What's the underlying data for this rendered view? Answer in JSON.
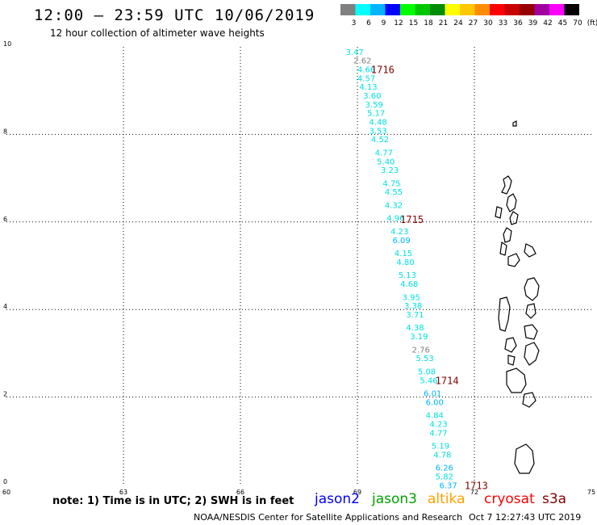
{
  "header": {
    "title": "12:00 — 23:59 UTC 10/06/2019",
    "subtitle": "12 hour collection of altimeter wave heights"
  },
  "color_scale": {
    "labels": [
      "3",
      "6",
      "9",
      "12",
      "15",
      "18",
      "21",
      "24",
      "27",
      "30",
      "33",
      "36",
      "39",
      "42",
      "45",
      "70",
      "(ft)"
    ],
    "colors": [
      "#808080",
      "#00ffff",
      "#00b4ff",
      "#0000ff",
      "#00ff00",
      "#00c800",
      "#008c00",
      "#ffff00",
      "#ffc800",
      "#ff8c00",
      "#ff0000",
      "#c80000",
      "#960000",
      "#a000a0",
      "#ff00ff",
      "#000000"
    ]
  },
  "axes": {
    "x_ticks": [
      "60",
      "63",
      "66",
      "69",
      "72",
      "75"
    ],
    "y_ticks": [
      "0",
      "2",
      "4",
      "6",
      "8",
      "10"
    ]
  },
  "chart_data": {
    "type": "scatter",
    "x_range": [
      60,
      75
    ],
    "y_range": [
      0,
      10
    ],
    "grid": true,
    "passes": [
      "1716",
      "1715",
      "1714",
      "1713"
    ],
    "swh_labels": [
      {
        "v": "3.47",
        "c": "#00e0e0",
        "x": 68.7,
        "y": 9.82
      },
      {
        "v": "2.62",
        "c": "#808080",
        "x": 68.9,
        "y": 9.62
      },
      {
        "v": "4.66",
        "c": "#00e0e0",
        "x": 69.0,
        "y": 9.42
      },
      {
        "v": "4.57",
        "c": "#00e0e0",
        "x": 69.0,
        "y": 9.22
      },
      {
        "v": "4.13",
        "c": "#00e0e0",
        "x": 69.05,
        "y": 9.02
      },
      {
        "v": "3.60",
        "c": "#00e0e0",
        "x": 69.15,
        "y": 8.82
      },
      {
        "v": "3.59",
        "c": "#00e0e0",
        "x": 69.2,
        "y": 8.62
      },
      {
        "v": "5.17",
        "c": "#00e0e0",
        "x": 69.25,
        "y": 8.42
      },
      {
        "v": "4.48",
        "c": "#00e0e0",
        "x": 69.3,
        "y": 8.22
      },
      {
        "v": "3.53",
        "c": "#00e0e0",
        "x": 69.3,
        "y": 8.02
      },
      {
        "v": "4.52",
        "c": "#00e0e0",
        "x": 69.35,
        "y": 7.82
      },
      {
        "v": "4.77",
        "c": "#00e0e0",
        "x": 69.45,
        "y": 7.52
      },
      {
        "v": "5.40",
        "c": "#00e0e0",
        "x": 69.5,
        "y": 7.32
      },
      {
        "v": "3.23",
        "c": "#00e0e0",
        "x": 69.6,
        "y": 7.12
      },
      {
        "v": "4.75",
        "c": "#00e0e0",
        "x": 69.65,
        "y": 6.82
      },
      {
        "v": "4.55",
        "c": "#00e0e0",
        "x": 69.7,
        "y": 6.62
      },
      {
        "v": "4.32",
        "c": "#00e0e0",
        "x": 69.7,
        "y": 6.32
      },
      {
        "v": "4.96",
        "c": "#00e0e0",
        "x": 69.75,
        "y": 6.02
      },
      {
        "v": "4.23",
        "c": "#00e0e0",
        "x": 69.85,
        "y": 5.72
      },
      {
        "v": "6.09",
        "c": "#00b4ff",
        "x": 69.9,
        "y": 5.52
      },
      {
        "v": "4.15",
        "c": "#00e0e0",
        "x": 69.95,
        "y": 5.22
      },
      {
        "v": "4.80",
        "c": "#00e0e0",
        "x": 70.0,
        "y": 5.02
      },
      {
        "v": "5.13",
        "c": "#00e0e0",
        "x": 70.05,
        "y": 4.72
      },
      {
        "v": "4.68",
        "c": "#00e0e0",
        "x": 70.1,
        "y": 4.52
      },
      {
        "v": "3.95",
        "c": "#00e0e0",
        "x": 70.15,
        "y": 4.22
      },
      {
        "v": "3.38",
        "c": "#00e0e0",
        "x": 70.2,
        "y": 4.02
      },
      {
        "v": "3.71",
        "c": "#00e0e0",
        "x": 70.25,
        "y": 3.82
      },
      {
        "v": "4.38",
        "c": "#00e0e0",
        "x": 70.25,
        "y": 3.52
      },
      {
        "v": "3.19",
        "c": "#00e0e0",
        "x": 70.35,
        "y": 3.32
      },
      {
        "v": "2.76",
        "c": "#808080",
        "x": 70.4,
        "y": 3.02
      },
      {
        "v": "5.53",
        "c": "#00e0e0",
        "x": 70.5,
        "y": 2.82
      },
      {
        "v": "5.08",
        "c": "#00e0e0",
        "x": 70.55,
        "y": 2.52
      },
      {
        "v": "5.46",
        "c": "#00e0e0",
        "x": 70.6,
        "y": 2.32
      },
      {
        "v": "6.01",
        "c": "#00b4ff",
        "x": 70.7,
        "y": 2.02
      },
      {
        "v": "6.00",
        "c": "#00b4ff",
        "x": 70.75,
        "y": 1.82
      },
      {
        "v": "4.84",
        "c": "#00e0e0",
        "x": 70.75,
        "y": 1.52
      },
      {
        "v": "4.23",
        "c": "#00e0e0",
        "x": 70.85,
        "y": 1.32
      },
      {
        "v": "4.77",
        "c": "#00e0e0",
        "x": 70.85,
        "y": 1.12
      },
      {
        "v": "5.19",
        "c": "#00e0e0",
        "x": 70.9,
        "y": 0.82
      },
      {
        "v": "4.78",
        "c": "#00e0e0",
        "x": 70.95,
        "y": 0.62
      },
      {
        "v": "6.26",
        "c": "#00b4ff",
        "x": 71.0,
        "y": 0.32
      },
      {
        "v": "5.82",
        "c": "#00e0e0",
        "x": 71.0,
        "y": 0.12
      },
      {
        "v": "6.37",
        "c": "#00b4ff",
        "x": 71.1,
        "y": -0.08
      }
    ],
    "pass_labels": [
      {
        "v": "1716",
        "x": 69.35,
        "y": 9.4
      },
      {
        "v": "1715",
        "x": 70.1,
        "y": 5.98
      },
      {
        "v": "1714",
        "x": 71.0,
        "y": 2.3
      },
      {
        "v": "1713",
        "x": 71.75,
        "y": -0.1
      }
    ]
  },
  "note": "note: 1) Time is in UTC; 2) SWH is in feet",
  "legend": [
    {
      "label": "jason2",
      "color": "#0000ff"
    },
    {
      "label": "jason3",
      "color": "#00a000"
    },
    {
      "label": "altika",
      "color": "#ffa000"
    },
    {
      "label": "cryosat",
      "color": "#ff0000"
    },
    {
      "label": "s3a",
      "color": "#800000"
    }
  ],
  "footer": {
    "source": "NOAA/NESDIS Center for Satellite Applications and Research",
    "timestamp": "Oct  7 12:27:43 UTC 2019"
  }
}
